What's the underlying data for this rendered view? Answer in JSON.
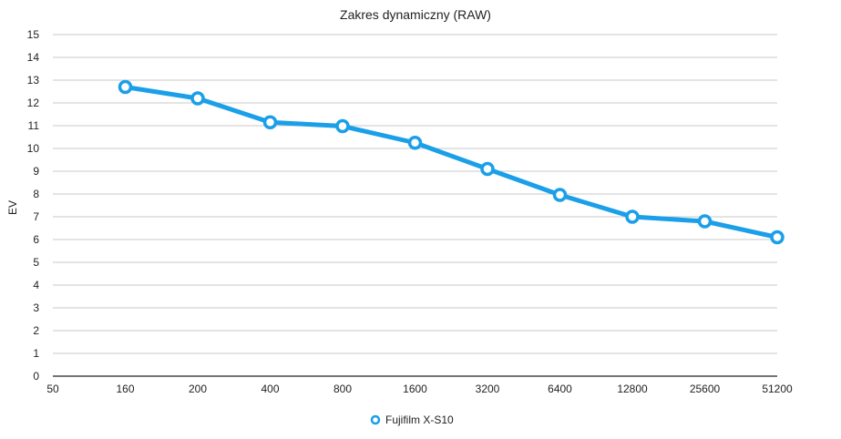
{
  "chart_data": {
    "type": "line",
    "title": "Zakres dynamiczny (RAW)",
    "xlabel": "",
    "ylabel": "EV",
    "categories": [
      "50",
      "160",
      "200",
      "400",
      "800",
      "1600",
      "3200",
      "6400",
      "12800",
      "25600",
      "51200"
    ],
    "series": [
      {
        "name": "Fujifilm X-S10",
        "color": "#1a9fe8",
        "values": [
          null,
          12.7,
          12.2,
          11.15,
          10.98,
          10.25,
          9.1,
          7.96,
          7.0,
          6.8,
          6.1
        ]
      }
    ],
    "ylim": [
      0,
      15
    ],
    "yticks": [
      "0",
      "1",
      "2",
      "3",
      "4",
      "5",
      "6",
      "7",
      "8",
      "9",
      "10",
      "11",
      "12",
      "13",
      "14",
      "15"
    ],
    "grid": true,
    "legend": "bottom-center"
  }
}
